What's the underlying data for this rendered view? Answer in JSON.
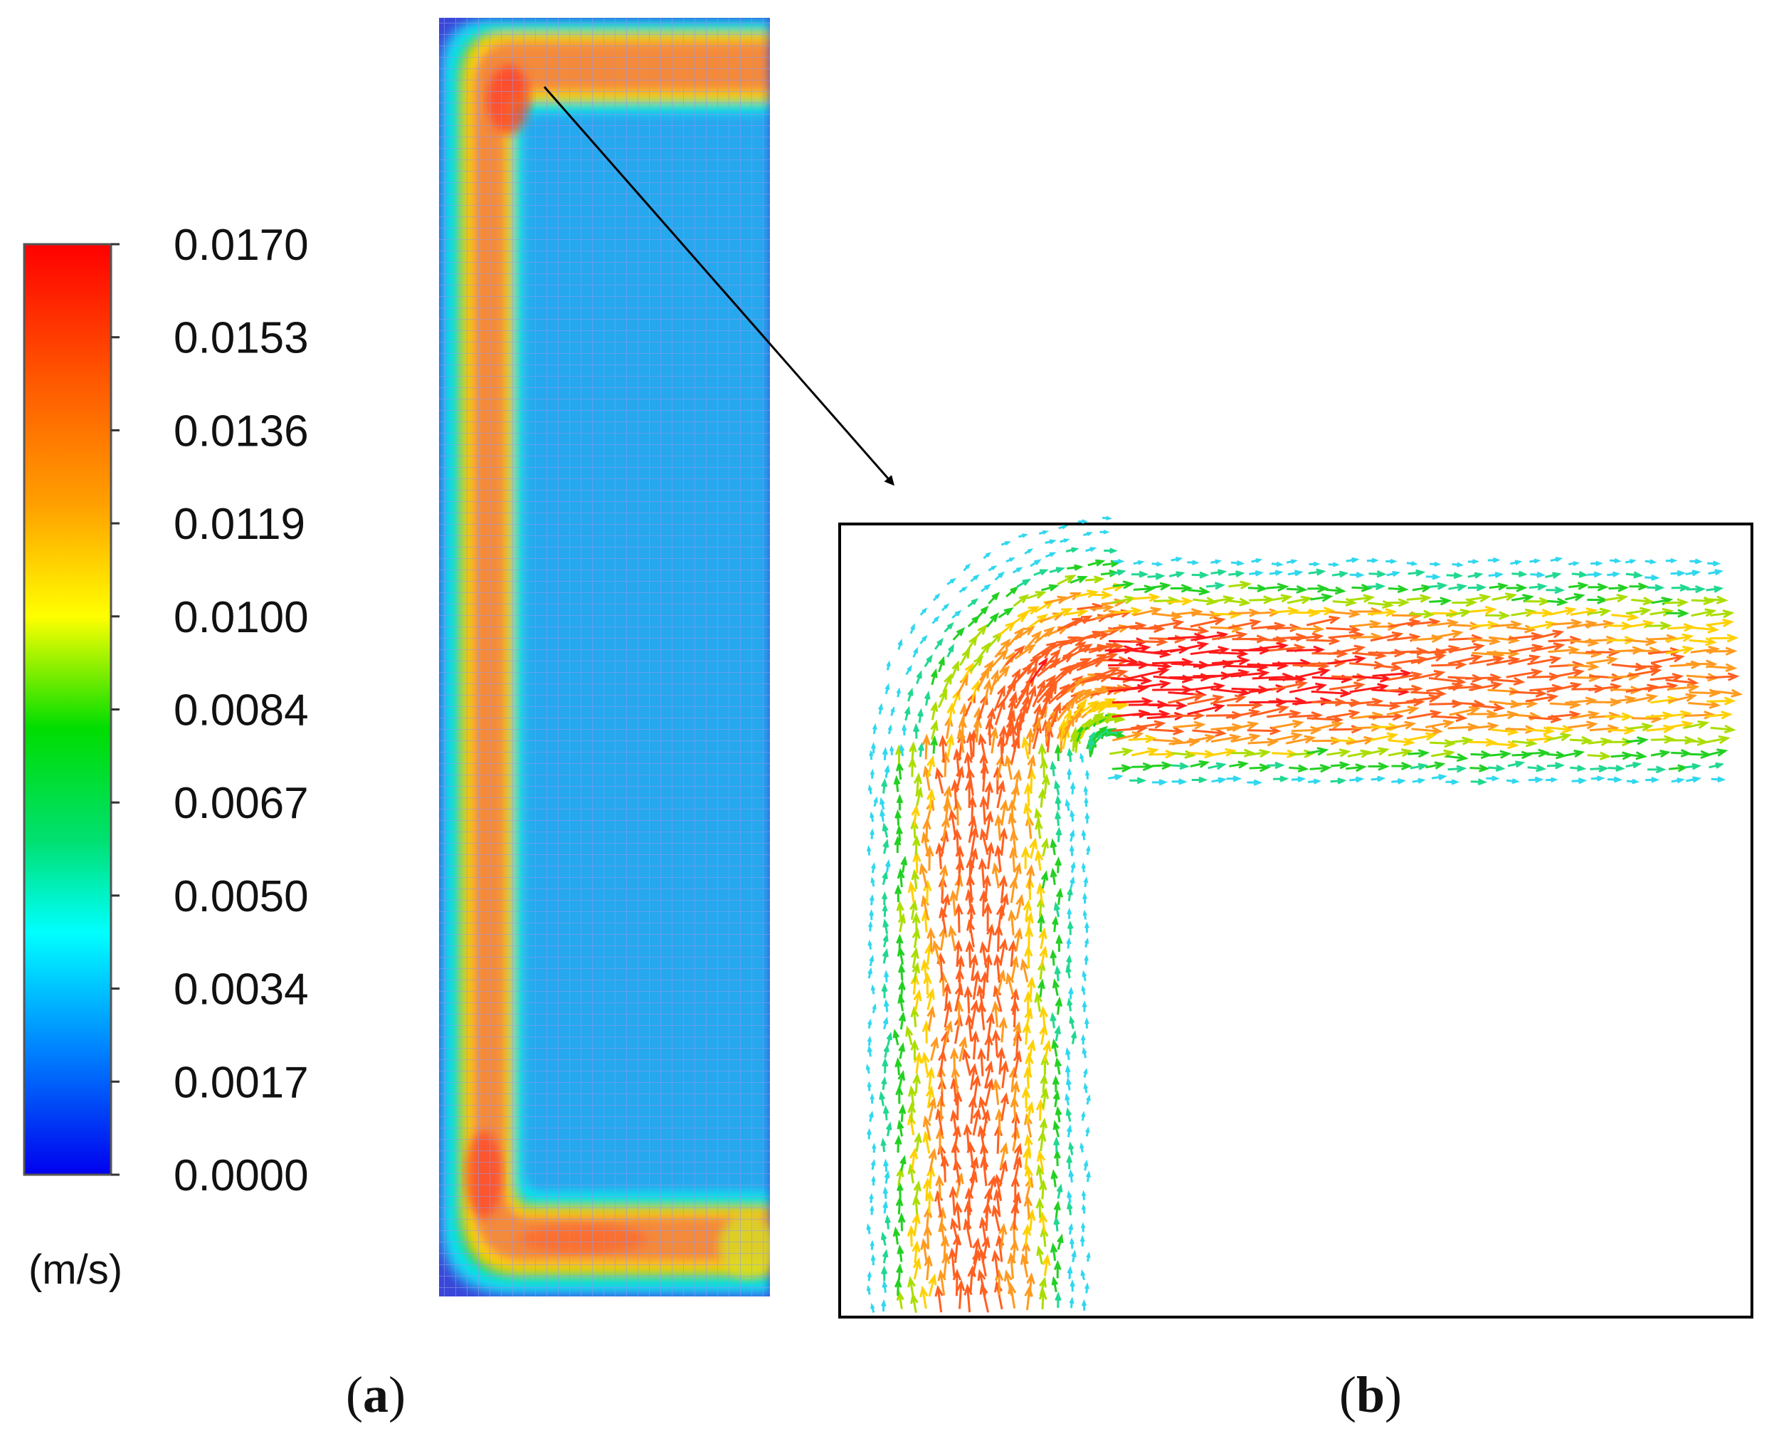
{
  "colorbar": {
    "ticks": [
      "0.0170",
      "0.0153",
      "0.0136",
      "0.0119",
      "0.0100",
      "0.0084",
      "0.0067",
      "0.0050",
      "0.0034",
      "0.0017",
      "0.0000"
    ],
    "unit": "(m/s)",
    "min": 0.0,
    "max": 0.017,
    "colors": [
      "#ff0000",
      "#ff6a00",
      "#ffb000",
      "#ffff00",
      "#00dd00",
      "#00ffff",
      "#0066ff",
      "#0000ff"
    ]
  },
  "panels": {
    "a": {
      "label": "a"
    },
    "b": {
      "label": "b"
    }
  },
  "colors": {
    "domain_blue": "#3a46d8",
    "grid_line": "#7f89ee",
    "arrow": "#000000",
    "frame": "#000000"
  }
}
